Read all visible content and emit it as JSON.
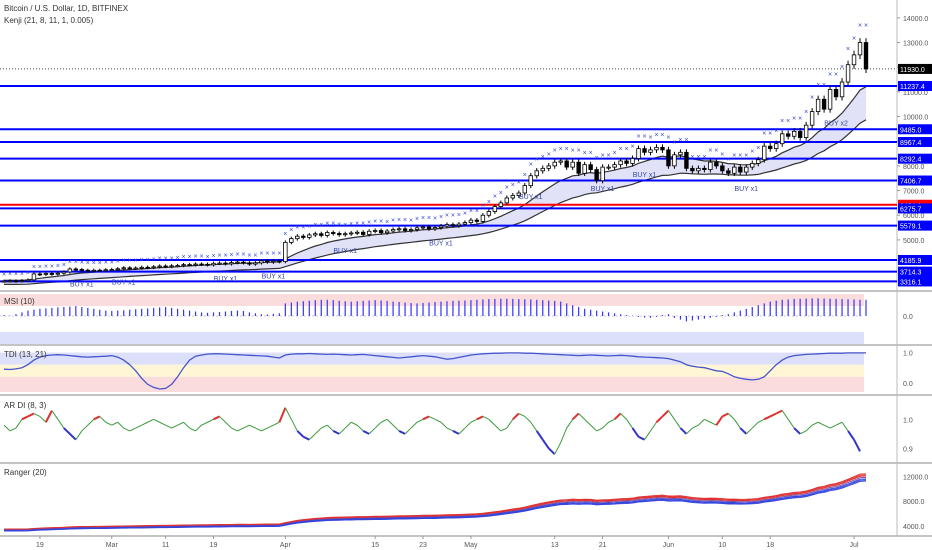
{
  "header": {
    "symbol": "Bitcoin / U.S. Dollar, 1D, BITFINEX",
    "indicator": "Kenji (21, 8, 11, 1, 0.005)"
  },
  "colors": {
    "bull_candle": "#ffffff",
    "bear_candle": "#000000",
    "level_line": "#0000ff",
    "entry_line": "#ff0000",
    "band_fill": "#c8c8f0",
    "msi_bar": "#3333ff",
    "tdi_line": "#4455cc",
    "tdi_hot": "#e05050",
    "ardi_line": "#3a9a3a",
    "ardi_up": "#e03030",
    "ardi_down": "#3333cc",
    "ranger_red": "#e03030",
    "ranger_blue": "#3344dd"
  },
  "panes": {
    "msi_title": "MSI (10)",
    "tdi_title": "TDI (13, 21)",
    "ardi_title": "AR DI (8, 3)",
    "ranger_title": "Ranger (20)"
  },
  "chart_data": [
    {
      "type": "candlestick",
      "title": "Bitcoin / U.S. Dollar, 1D, BITFINEX",
      "y_ticks": [
        5000,
        6000,
        7000,
        8000,
        9000,
        10000,
        11000,
        12000,
        13000,
        14000
      ],
      "ylim": [
        3050,
        14400
      ],
      "last_price": 11930.0,
      "x_tick_labels": [
        "19",
        "Mar",
        "11",
        "19",
        "Apr",
        "15",
        "23",
        "May",
        "13",
        "21",
        "Jun",
        "10",
        "18",
        "Jul"
      ],
      "x_ticks_bar_index": [
        6,
        18,
        27,
        35,
        47,
        62,
        70,
        78,
        92,
        100,
        111,
        120,
        128,
        142
      ],
      "close": [
        3330,
        3340,
        3325,
        3350,
        3380,
        3620,
        3600,
        3640,
        3610,
        3650,
        3700,
        3820,
        3800,
        3770,
        3750,
        3770,
        3760,
        3790,
        3800,
        3830,
        3870,
        3850,
        3860,
        3890,
        3880,
        3910,
        3940,
        3920,
        3950,
        3960,
        4000,
        3990,
        4020,
        4010,
        3990,
        4050,
        4060,
        4030,
        4080,
        4100,
        4070,
        4020,
        4070,
        4150,
        4100,
        4140,
        4120,
        4900,
        5050,
        5150,
        5100,
        5200,
        5250,
        5180,
        5300,
        5260,
        5210,
        5250,
        5280,
        5310,
        5220,
        5350,
        5380,
        5290,
        5360,
        5420,
        5450,
        5380,
        5420,
        5490,
        5520,
        5450,
        5500,
        5560,
        5620,
        5580,
        5640,
        5700,
        5800,
        5750,
        6000,
        6150,
        6350,
        6500,
        6700,
        6800,
        6900,
        7200,
        7600,
        7800,
        7900,
        8000,
        8150,
        8200,
        7950,
        8150,
        7700,
        8050,
        7850,
        7400,
        7950,
        7950,
        8050,
        8200,
        8100,
        8300,
        8700,
        8550,
        8650,
        8750,
        8650,
        8000,
        8450,
        8550,
        7900,
        7800,
        7900,
        7850,
        8150,
        8000,
        7800,
        7700,
        7950,
        7750,
        7950,
        8100,
        8250,
        8800,
        8700,
        8900,
        9300,
        9200,
        9400,
        9150,
        9650,
        10200,
        10700,
        10300,
        11100,
        10800,
        11400,
        12100,
        12500,
        13000,
        11930
      ],
      "levels": [
        {
          "label": "11237.4",
          "value": 11237.4,
          "kind": "level"
        },
        {
          "label": "9485.0",
          "value": 9485.0,
          "kind": "level"
        },
        {
          "label": "8967.4",
          "value": 8967.4,
          "kind": "level"
        },
        {
          "label": "8292.4",
          "value": 8292.4,
          "kind": "level"
        },
        {
          "label": "7406.7",
          "value": 7406.7,
          "kind": "level"
        },
        {
          "label": "6424.1",
          "value": 6424.1,
          "kind": "entry"
        },
        {
          "label": "6275.7",
          "value": 6275.7,
          "kind": "level"
        },
        {
          "label": "5579.1",
          "value": 5579.1,
          "kind": "level"
        },
        {
          "label": "4185.9",
          "value": 4185.9,
          "kind": "level"
        },
        {
          "label": "3714.3",
          "value": 3714.3,
          "kind": "level"
        },
        {
          "label": "3316.1",
          "value": 3316.1,
          "kind": "level"
        }
      ],
      "annotations": [
        {
          "text": "BUY x1",
          "bar": 13
        },
        {
          "text": "BUY x1",
          "bar": 20
        },
        {
          "text": "BUY x1",
          "bar": 37
        },
        {
          "text": "BUY x1",
          "bar": 45
        },
        {
          "text": "BUY x1",
          "bar": 57
        },
        {
          "text": "BUY x1",
          "bar": 73
        },
        {
          "text": "BUY x1",
          "bar": 88
        },
        {
          "text": "BUY x1",
          "bar": 100
        },
        {
          "text": "BUY x1",
          "bar": 107
        },
        {
          "text": "BUY x1",
          "bar": 124
        },
        {
          "text": "BUY x2",
          "bar": 139
        }
      ]
    },
    {
      "type": "bar",
      "title": "MSI (10)",
      "y_ticks": [
        0.0
      ],
      "ylim": [
        -1,
        1
      ],
      "values": [
        0.05,
        0.02,
        0.1,
        0.2,
        0.3,
        0.35,
        0.4,
        0.42,
        0.45,
        0.48,
        0.5,
        0.52,
        0.55,
        0.5,
        0.45,
        0.4,
        0.35,
        0.3,
        0.28,
        0.3,
        0.32,
        0.35,
        0.38,
        0.4,
        0.42,
        0.45,
        0.48,
        0.5,
        0.45,
        0.4,
        0.35,
        0.3,
        0.25,
        0.2,
        0.18,
        0.2,
        0.22,
        0.25,
        0.28,
        0.3,
        0.28,
        0.2,
        0.15,
        0.1,
        0.08,
        0.12,
        0.15,
        0.7,
        0.75,
        0.8,
        0.82,
        0.85,
        0.88,
        0.9,
        0.9,
        0.88,
        0.85,
        0.82,
        0.8,
        0.82,
        0.84,
        0.86,
        0.88,
        0.86,
        0.84,
        0.8,
        0.78,
        0.75,
        0.72,
        0.7,
        0.72,
        0.75,
        0.78,
        0.8,
        0.82,
        0.84,
        0.85,
        0.86,
        0.88,
        0.9,
        0.92,
        0.94,
        0.95,
        0.96,
        0.96,
        0.95,
        0.94,
        0.93,
        0.92,
        0.9,
        0.88,
        0.86,
        0.84,
        0.8,
        0.7,
        0.6,
        0.5,
        0.4,
        0.35,
        0.3,
        0.25,
        0.2,
        0.15,
        0.1,
        0.05,
        0.02,
        -0.05,
        -0.08,
        -0.1,
        -0.05,
        0.05,
        0.1,
        -0.1,
        -0.2,
        -0.3,
        -0.25,
        -0.2,
        -0.15,
        -0.1,
        -0.05,
        0.05,
        0.1,
        0.2,
        0.3,
        0.4,
        0.5,
        0.6,
        0.7,
        0.8,
        0.85,
        0.9,
        0.92,
        0.95,
        0.96,
        0.97,
        0.98,
        0.98,
        0.97,
        0.96,
        0.95,
        0.94,
        0.93,
        0.92,
        0.9,
        0.9
      ]
    },
    {
      "type": "line",
      "title": "TDI (13, 21)",
      "y_ticks": [
        0.0,
        1.0
      ],
      "ylim": [
        -0.3,
        1.15
      ],
      "values": [
        0.45,
        0.44,
        0.46,
        0.5,
        0.6,
        0.75,
        0.85,
        0.9,
        0.92,
        0.93,
        0.92,
        0.9,
        0.88,
        0.86,
        0.85,
        0.86,
        0.87,
        0.88,
        0.9,
        0.85,
        0.75,
        0.6,
        0.4,
        0.15,
        -0.05,
        -0.15,
        -0.2,
        -0.18,
        -0.05,
        0.2,
        0.5,
        0.75,
        0.88,
        0.92,
        0.95,
        0.96,
        0.96,
        0.95,
        0.94,
        0.93,
        0.92,
        0.91,
        0.9,
        0.89,
        0.88,
        0.85,
        0.82,
        0.92,
        0.95,
        0.96,
        0.96,
        0.97,
        0.96,
        0.95,
        0.94,
        0.95,
        0.94,
        0.93,
        0.92,
        0.93,
        0.94,
        0.92,
        0.9,
        0.88,
        0.86,
        0.84,
        0.82,
        0.84,
        0.86,
        0.88,
        0.9,
        0.88,
        0.86,
        0.82,
        0.78,
        0.8,
        0.84,
        0.88,
        0.92,
        0.94,
        0.96,
        0.97,
        0.98,
        0.98,
        0.99,
        0.99,
        0.99,
        0.98,
        0.98,
        0.97,
        0.96,
        0.95,
        0.94,
        0.93,
        0.92,
        0.91,
        0.9,
        0.91,
        0.92,
        0.91,
        0.9,
        0.89,
        0.9,
        0.91,
        0.9,
        0.88,
        0.86,
        0.85,
        0.84,
        0.83,
        0.82,
        0.8,
        0.75,
        0.7,
        0.6,
        0.55,
        0.52,
        0.5,
        0.45,
        0.4,
        0.38,
        0.3,
        0.2,
        0.15,
        0.12,
        0.1,
        0.12,
        0.2,
        0.4,
        0.6,
        0.75,
        0.85,
        0.9,
        0.92,
        0.94,
        0.95,
        0.96,
        0.97,
        0.98,
        0.98,
        0.98,
        0.99,
        0.99,
        0.99,
        0.99
      ]
    },
    {
      "type": "line",
      "title": "AR DI (8, 3)",
      "y_ticks": [
        0.9,
        1.0
      ],
      "ylim": [
        0.86,
        1.07
      ],
      "values": [
        0.98,
        0.96,
        0.97,
        1.0,
        1.01,
        1.02,
        1.01,
        0.99,
        1.03,
        1.0,
        0.97,
        0.95,
        0.93,
        0.96,
        0.98,
        1.0,
        1.01,
        0.99,
        0.98,
        0.99,
        0.97,
        0.96,
        0.97,
        0.98,
        0.99,
        1.0,
        0.99,
        0.98,
        0.97,
        0.98,
        0.99,
        0.97,
        0.96,
        0.98,
        0.99,
        1.0,
        1.01,
        0.99,
        0.97,
        0.96,
        0.97,
        0.98,
        0.97,
        0.96,
        0.97,
        0.98,
        0.99,
        1.04,
        1.0,
        0.96,
        0.94,
        0.93,
        0.95,
        0.97,
        0.98,
        0.96,
        0.95,
        0.97,
        0.99,
        0.98,
        0.96,
        0.95,
        0.97,
        0.99,
        1.0,
        0.98,
        0.96,
        0.95,
        0.97,
        0.99,
        1.0,
        1.01,
        1.0,
        0.99,
        0.97,
        0.96,
        0.95,
        0.97,
        0.99,
        1.0,
        1.01,
        1.0,
        0.98,
        0.96,
        0.97,
        1.0,
        1.02,
        1.01,
        0.99,
        0.96,
        0.93,
        0.9,
        0.88,
        0.92,
        0.97,
        1.0,
        1.02,
        1.0,
        0.98,
        0.96,
        0.97,
        0.99,
        1.0,
        1.02,
        1.0,
        0.97,
        0.94,
        0.93,
        0.96,
        0.99,
        1.01,
        1.03,
        1.0,
        0.97,
        0.95,
        0.97,
        0.98,
        1.0,
        0.99,
        0.98,
        1.01,
        1.02,
        1.0,
        0.97,
        0.95,
        0.97,
        0.99,
        1.0,
        1.01,
        1.02,
        1.03,
        1.0,
        0.97,
        0.95,
        0.96,
        0.98,
        0.99,
        0.98,
        0.97,
        0.98,
        0.99,
        0.96,
        0.93,
        0.89
      ]
    },
    {
      "type": "line",
      "title": "Ranger (20)",
      "y_ticks": [
        4000.0,
        8000.0,
        12000.0
      ],
      "ylim": [
        3000,
        13500
      ]
    }
  ]
}
